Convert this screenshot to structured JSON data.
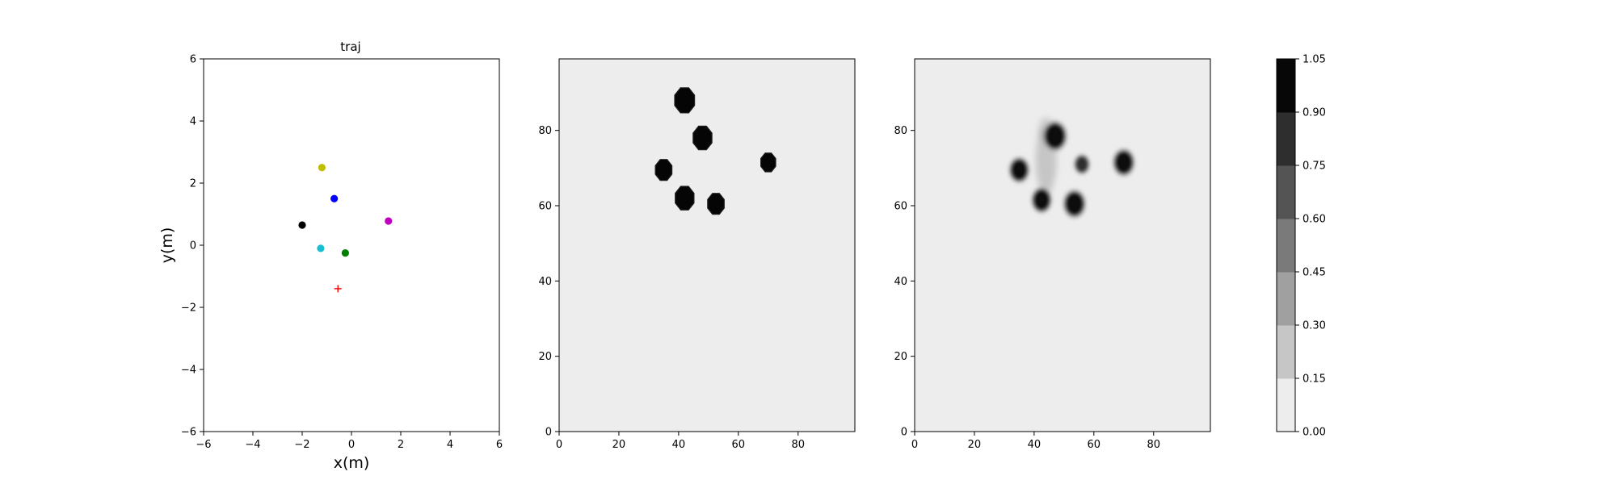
{
  "chart_data": [
    {
      "type": "scatter",
      "title": "traj",
      "xlabel": "x(m)",
      "ylabel": "y(m)",
      "xlim": [
        -6,
        6
      ],
      "ylim": [
        -6,
        6
      ],
      "xticks": [
        -6,
        -4,
        -2,
        0,
        2,
        4,
        6
      ],
      "yticks": [
        -6,
        -4,
        -2,
        0,
        2,
        4,
        6
      ],
      "grid": false,
      "points": [
        {
          "x": -1.2,
          "y": 2.5,
          "color": "#bfbf00",
          "marker": "circle"
        },
        {
          "x": -0.7,
          "y": 1.5,
          "color": "#0000ff",
          "marker": "circle"
        },
        {
          "x": -2.0,
          "y": 0.65,
          "color": "#000000",
          "marker": "circle"
        },
        {
          "x": 1.5,
          "y": 0.78,
          "color": "#bf00bf",
          "marker": "circle"
        },
        {
          "x": -1.25,
          "y": -0.1,
          "color": "#17becf",
          "marker": "circle"
        },
        {
          "x": -0.25,
          "y": -0.25,
          "color": "#008000",
          "marker": "circle"
        },
        {
          "x": -0.55,
          "y": -1.4,
          "color": "#ff0000",
          "marker": "plus"
        }
      ]
    },
    {
      "type": "heatmap",
      "title": "",
      "xlabel": "",
      "ylabel": "",
      "xlim": [
        0,
        99
      ],
      "ylim": [
        0,
        99
      ],
      "xticks": [
        0,
        20,
        40,
        60,
        80
      ],
      "yticks": [
        0,
        20,
        40,
        60,
        80
      ],
      "background_value": 0.05,
      "blobs": [
        {
          "cx": 42,
          "cy": 88,
          "r": 3.6,
          "value": 1.0,
          "shape": "octagon"
        },
        {
          "cx": 48,
          "cy": 78,
          "r": 3.4,
          "value": 1.0,
          "shape": "octagon"
        },
        {
          "cx": 35,
          "cy": 69.5,
          "r": 3.0,
          "value": 1.0,
          "shape": "octagon"
        },
        {
          "cx": 70,
          "cy": 71.5,
          "r": 2.7,
          "value": 1.0,
          "shape": "octagon"
        },
        {
          "cx": 42,
          "cy": 62,
          "r": 3.4,
          "value": 1.0,
          "shape": "octagon"
        },
        {
          "cx": 52.5,
          "cy": 60.5,
          "r": 3.0,
          "value": 1.0,
          "shape": "octagon"
        }
      ]
    },
    {
      "type": "heatmap",
      "title": "",
      "xlabel": "",
      "ylabel": "",
      "xlim": [
        0,
        99
      ],
      "ylim": [
        0,
        99
      ],
      "xticks": [
        0,
        20,
        40,
        60,
        80
      ],
      "yticks": [
        0,
        20,
        40,
        60,
        80
      ],
      "background_value": 0.05,
      "blobs": [
        {
          "cx": 47,
          "cy": 78.5,
          "r": 3.3,
          "value": 1.0
        },
        {
          "cx": 35,
          "cy": 69.5,
          "r": 2.8,
          "value": 1.0
        },
        {
          "cx": 70,
          "cy": 71.5,
          "r": 3.0,
          "value": 1.0
        },
        {
          "cx": 56,
          "cy": 71,
          "r": 2.2,
          "value": 0.8
        },
        {
          "cx": 42.5,
          "cy": 61.5,
          "r": 2.8,
          "value": 1.0
        },
        {
          "cx": 53.5,
          "cy": 60.5,
          "r": 3.1,
          "value": 1.0
        }
      ],
      "haze": [
        {
          "cx": 44,
          "cy": 72,
          "rx": 3.5,
          "ry": 9,
          "value": 0.3
        },
        {
          "cx": 44,
          "cy": 80,
          "rx": 2.5,
          "ry": 3.5,
          "value": 0.25
        }
      ]
    }
  ],
  "colorbar": {
    "ticks": [
      "0.00",
      "0.15",
      "0.30",
      "0.45",
      "0.60",
      "0.75",
      "0.90",
      "1.05"
    ],
    "levels": [
      "#ededed",
      "#c6c6c6",
      "#a0a0a0",
      "#7a7a7a",
      "#545454",
      "#2e2e2e",
      "#070707"
    ]
  }
}
